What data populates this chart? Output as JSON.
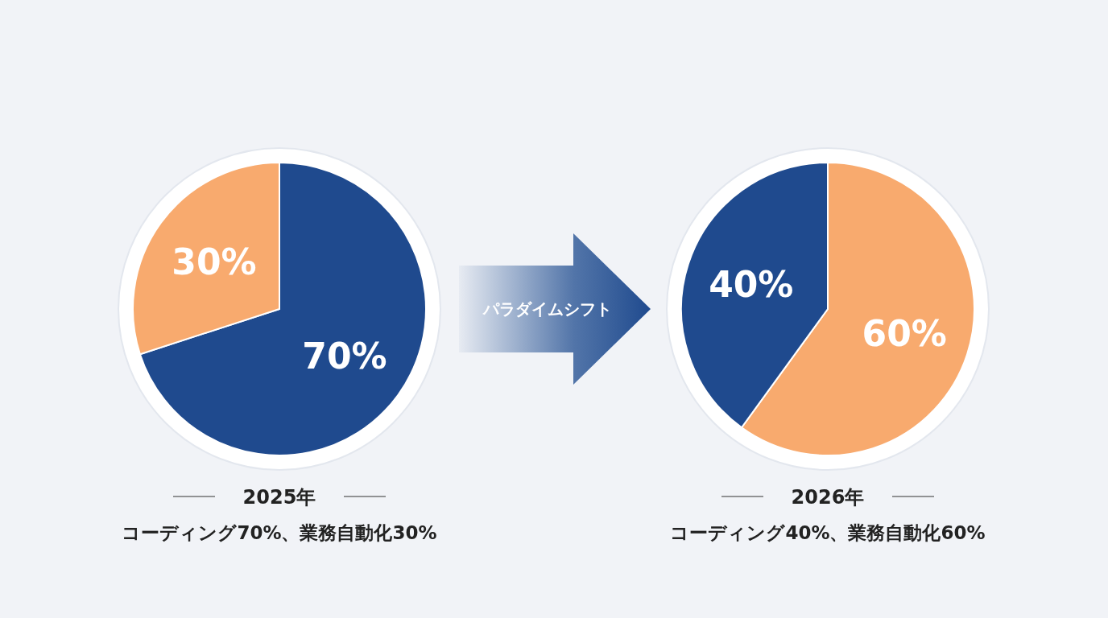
{
  "chart_data": [
    {
      "type": "pie",
      "title": "2025年",
      "subtitle": "コーディング70%、業務自動化30%",
      "categories": [
        null,
        null
      ],
      "values": [
        70,
        30
      ],
      "colors": [
        "#1f4a8e",
        "#f8aa6e"
      ],
      "value_labels": [
        "70%",
        "30%"
      ]
    },
    {
      "type": "other",
      "annotations": [
        "パラダイムシフト"
      ]
    },
    {
      "type": "pie",
      "title": "2026年",
      "subtitle": "コーディング40%、業務自動化60%",
      "categories": [
        null,
        null
      ],
      "values": [
        60,
        40
      ],
      "colors": [
        "#f8aa6e",
        "#1f4a8e"
      ],
      "value_labels": [
        "60%",
        "40%"
      ]
    }
  ]
}
